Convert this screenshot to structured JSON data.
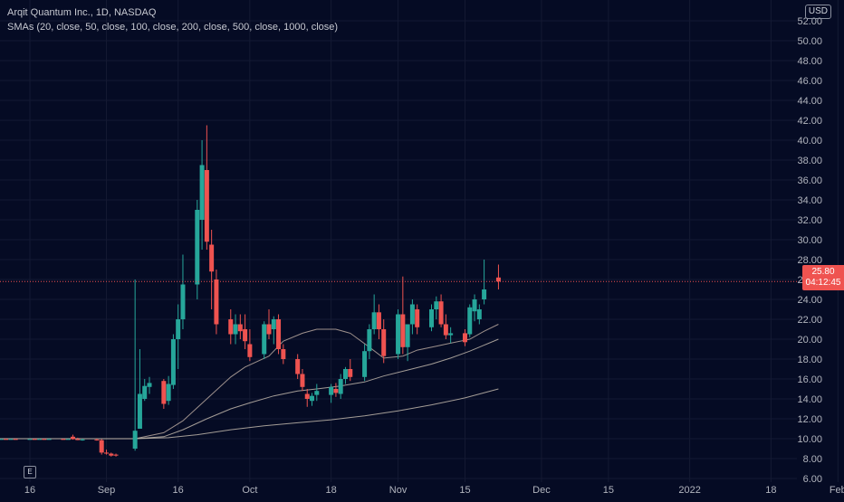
{
  "header": {
    "symbol_line": "Arqit Quantum Inc., 1D, NASDAQ",
    "indicator_line": "SMAs (20, close, 50, close, 100, close, 200, close, 500, close, 1000, close)",
    "currency": "USD"
  },
  "last_price": {
    "value": "25.80",
    "countdown": "04:12:45",
    "color": "#ef5350"
  },
  "footer": {
    "e_badge": "E"
  },
  "colors": {
    "background": "#050b24",
    "up": "#26a69a",
    "down": "#ef5350",
    "sma_short": "#b9a89f",
    "sma_long": "#bfb6aa",
    "grid": "#141a33",
    "axis_text": "#b2b5be"
  },
  "chart_data": {
    "type": "candlestick",
    "title": "Arqit Quantum Inc., 1D, NASDAQ",
    "ylim": [
      5,
      53
    ],
    "y_ticks": [
      "6.00",
      "8.00",
      "10.00",
      "12.00",
      "14.00",
      "16.00",
      "18.00",
      "20.00",
      "22.00",
      "24.00",
      "26.00",
      "28.00",
      "30.00",
      "32.00",
      "34.00",
      "36.00",
      "38.00",
      "40.00",
      "42.00",
      "44.00",
      "46.00",
      "48.00",
      "50.00",
      "52.00"
    ],
    "x_ticks": [
      {
        "label": "16",
        "date": "2021-08-16"
      },
      {
        "label": "Sep",
        "date": "2021-09-01"
      },
      {
        "label": "16",
        "date": "2021-09-16"
      },
      {
        "label": "Oct",
        "date": "2021-10-01"
      },
      {
        "label": "18",
        "date": "2021-10-18"
      },
      {
        "label": "Nov",
        "date": "2021-11-01"
      },
      {
        "label": "15",
        "date": "2021-11-15"
      },
      {
        "label": "Dec",
        "date": "2021-12-01"
      },
      {
        "label": "15",
        "date": "2021-12-15"
      },
      {
        "label": "2022",
        "date": "2022-01-01"
      },
      {
        "label": "18",
        "date": "2022-01-18"
      },
      {
        "label": "Feb",
        "date": "2022-02-01"
      }
    ],
    "candles": [
      {
        "date": "2021-08-02",
        "o": 9.95,
        "h": 10.0,
        "l": 9.9,
        "c": 9.97
      },
      {
        "date": "2021-08-03",
        "o": 9.97,
        "h": 10.0,
        "l": 9.92,
        "c": 9.95
      },
      {
        "date": "2021-08-04",
        "o": 9.95,
        "h": 10.0,
        "l": 9.92,
        "c": 9.97
      },
      {
        "date": "2021-08-05",
        "o": 9.97,
        "h": 10.0,
        "l": 9.93,
        "c": 9.96
      },
      {
        "date": "2021-08-06",
        "o": 9.96,
        "h": 10.0,
        "l": 9.93,
        "c": 9.97
      },
      {
        "date": "2021-08-09",
        "o": 9.97,
        "h": 10.0,
        "l": 9.93,
        "c": 9.95
      },
      {
        "date": "2021-08-10",
        "o": 9.95,
        "h": 10.0,
        "l": 9.93,
        "c": 9.97
      },
      {
        "date": "2021-08-11",
        "o": 9.97,
        "h": 10.0,
        "l": 9.93,
        "c": 9.96
      },
      {
        "date": "2021-08-12",
        "o": 9.96,
        "h": 10.0,
        "l": 9.93,
        "c": 9.97
      },
      {
        "date": "2021-08-13",
        "o": 9.97,
        "h": 10.0,
        "l": 9.93,
        "c": 9.95
      },
      {
        "date": "2021-08-16",
        "o": 9.95,
        "h": 10.0,
        "l": 9.93,
        "c": 9.97
      },
      {
        "date": "2021-08-17",
        "o": 9.97,
        "h": 10.0,
        "l": 9.93,
        "c": 9.96
      },
      {
        "date": "2021-08-18",
        "o": 9.96,
        "h": 10.0,
        "l": 9.93,
        "c": 9.97
      },
      {
        "date": "2021-08-19",
        "o": 9.97,
        "h": 10.0,
        "l": 9.93,
        "c": 9.95
      },
      {
        "date": "2021-08-20",
        "o": 9.95,
        "h": 10.0,
        "l": 9.93,
        "c": 9.97
      },
      {
        "date": "2021-08-23",
        "o": 9.97,
        "h": 10.0,
        "l": 9.93,
        "c": 9.96
      },
      {
        "date": "2021-08-24",
        "o": 9.96,
        "h": 10.0,
        "l": 9.93,
        "c": 9.97
      },
      {
        "date": "2021-08-25",
        "o": 10.2,
        "h": 10.4,
        "l": 9.9,
        "c": 9.95
      },
      {
        "date": "2021-08-26",
        "o": 9.95,
        "h": 10.1,
        "l": 9.85,
        "c": 9.9
      },
      {
        "date": "2021-08-27",
        "o": 9.9,
        "h": 10.0,
        "l": 9.8,
        "c": 9.92
      },
      {
        "date": "2021-08-30",
        "o": 9.92,
        "h": 10.0,
        "l": 9.8,
        "c": 9.85
      },
      {
        "date": "2021-08-31",
        "o": 9.85,
        "h": 9.95,
        "l": 8.4,
        "c": 8.6
      },
      {
        "date": "2021-09-01",
        "o": 8.6,
        "h": 8.9,
        "l": 8.4,
        "c": 8.5
      },
      {
        "date": "2021-09-02",
        "o": 8.5,
        "h": 8.6,
        "l": 8.2,
        "c": 8.3
      },
      {
        "date": "2021-09-03",
        "o": 8.4,
        "h": 8.5,
        "l": 8.2,
        "c": 8.3
      },
      {
        "date": "2021-09-07",
        "o": 9.0,
        "h": 26.0,
        "l": 8.8,
        "c": 10.8
      },
      {
        "date": "2021-09-08",
        "o": 11.0,
        "h": 19.0,
        "l": 11.0,
        "c": 14.5
      },
      {
        "date": "2021-09-09",
        "o": 14.0,
        "h": 16.0,
        "l": 13.8,
        "c": 15.3
      },
      {
        "date": "2021-09-10",
        "o": 15.2,
        "h": 16.2,
        "l": 14.5,
        "c": 15.6
      },
      {
        "date": "2021-09-13",
        "o": 15.8,
        "h": 16.0,
        "l": 13.0,
        "c": 13.5
      },
      {
        "date": "2021-09-14",
        "o": 13.8,
        "h": 16.3,
        "l": 13.4,
        "c": 15.5
      },
      {
        "date": "2021-09-15",
        "o": 15.4,
        "h": 20.5,
        "l": 15.0,
        "c": 20.0
      },
      {
        "date": "2021-09-16",
        "o": 20.0,
        "h": 23.5,
        "l": 17.0,
        "c": 22.0
      },
      {
        "date": "2021-09-17",
        "o": 22.0,
        "h": 28.5,
        "l": 21.0,
        "c": 25.5
      },
      {
        "date": "2021-09-20",
        "o": 25.5,
        "h": 34.0,
        "l": 24.0,
        "c": 33.0
      },
      {
        "date": "2021-09-21",
        "o": 32.0,
        "h": 40.0,
        "l": 29.0,
        "c": 37.5
      },
      {
        "date": "2021-09-22",
        "o": 37.0,
        "h": 41.5,
        "l": 29.0,
        "c": 29.8
      },
      {
        "date": "2021-09-23",
        "o": 29.5,
        "h": 31.0,
        "l": 23.0,
        "c": 26.8
      },
      {
        "date": "2021-09-24",
        "o": 26.0,
        "h": 27.0,
        "l": 20.5,
        "c": 21.5
      },
      {
        "date": "2021-09-27",
        "o": 22.0,
        "h": 23.0,
        "l": 19.5,
        "c": 20.5
      },
      {
        "date": "2021-09-28",
        "o": 20.5,
        "h": 22.5,
        "l": 19.5,
        "c": 21.5
      },
      {
        "date": "2021-09-29",
        "o": 21.5,
        "h": 22.5,
        "l": 20.0,
        "c": 20.8
      },
      {
        "date": "2021-09-30",
        "o": 21.0,
        "h": 22.5,
        "l": 19.0,
        "c": 19.8
      },
      {
        "date": "2021-10-01",
        "o": 19.5,
        "h": 21.0,
        "l": 17.8,
        "c": 18.2
      },
      {
        "date": "2021-10-04",
        "o": 18.5,
        "h": 21.8,
        "l": 18.0,
        "c": 21.5
      },
      {
        "date": "2021-10-05",
        "o": 21.5,
        "h": 23.0,
        "l": 20.0,
        "c": 20.5
      },
      {
        "date": "2021-10-06",
        "o": 21.0,
        "h": 22.3,
        "l": 19.5,
        "c": 22.0
      },
      {
        "date": "2021-10-07",
        "o": 22.0,
        "h": 22.5,
        "l": 18.5,
        "c": 19.0
      },
      {
        "date": "2021-10-08",
        "o": 19.0,
        "h": 19.5,
        "l": 17.5,
        "c": 18.0
      },
      {
        "date": "2021-10-11",
        "o": 18.0,
        "h": 18.5,
        "l": 16.0,
        "c": 16.5
      },
      {
        "date": "2021-10-12",
        "o": 16.5,
        "h": 17.0,
        "l": 14.8,
        "c": 15.2
      },
      {
        "date": "2021-10-13",
        "o": 14.5,
        "h": 15.0,
        "l": 13.2,
        "c": 14.0
      },
      {
        "date": "2021-10-14",
        "o": 13.8,
        "h": 14.6,
        "l": 13.3,
        "c": 14.3
      },
      {
        "date": "2021-10-15",
        "o": 14.4,
        "h": 15.5,
        "l": 13.8,
        "c": 14.8
      },
      {
        "date": "2021-10-18",
        "o": 14.4,
        "h": 15.5,
        "l": 13.6,
        "c": 15.2
      },
      {
        "date": "2021-10-19",
        "o": 15.0,
        "h": 15.6,
        "l": 14.2,
        "c": 14.6
      },
      {
        "date": "2021-10-20",
        "o": 14.5,
        "h": 16.5,
        "l": 14.0,
        "c": 16.0
      },
      {
        "date": "2021-10-21",
        "o": 16.0,
        "h": 17.2,
        "l": 15.5,
        "c": 17.0
      },
      {
        "date": "2021-10-22",
        "o": 17.0,
        "h": 18.0,
        "l": 15.8,
        "c": 16.2
      },
      {
        "date": "2021-10-25",
        "o": 16.2,
        "h": 19.5,
        "l": 15.8,
        "c": 18.8
      },
      {
        "date": "2021-10-26",
        "o": 18.8,
        "h": 21.5,
        "l": 18.0,
        "c": 21.0
      },
      {
        "date": "2021-10-27",
        "o": 21.0,
        "h": 24.5,
        "l": 20.5,
        "c": 22.7
      },
      {
        "date": "2021-10-28",
        "o": 22.7,
        "h": 23.5,
        "l": 20.0,
        "c": 21.0
      },
      {
        "date": "2021-10-29",
        "o": 21.0,
        "h": 22.0,
        "l": 17.6,
        "c": 18.3
      },
      {
        "date": "2021-11-01",
        "o": 18.5,
        "h": 23.0,
        "l": 18.0,
        "c": 22.5
      },
      {
        "date": "2021-11-02",
        "o": 22.5,
        "h": 26.3,
        "l": 18.5,
        "c": 19.2
      },
      {
        "date": "2021-11-03",
        "o": 19.2,
        "h": 21.5,
        "l": 17.8,
        "c": 21.5
      },
      {
        "date": "2021-11-04",
        "o": 21.5,
        "h": 24.0,
        "l": 20.5,
        "c": 23.5
      },
      {
        "date": "2021-11-05",
        "o": 23.0,
        "h": 23.5,
        "l": 20.5,
        "c": 21.2
      },
      {
        "date": "2021-11-08",
        "o": 21.2,
        "h": 23.5,
        "l": 20.8,
        "c": 23.0
      },
      {
        "date": "2021-11-09",
        "o": 23.0,
        "h": 24.3,
        "l": 22.0,
        "c": 23.8
      },
      {
        "date": "2021-11-10",
        "o": 23.8,
        "h": 24.5,
        "l": 21.2,
        "c": 21.5
      },
      {
        "date": "2021-11-11",
        "o": 21.5,
        "h": 22.5,
        "l": 20.0,
        "c": 20.4
      },
      {
        "date": "2021-11-12",
        "o": 20.4,
        "h": 21.2,
        "l": 19.6,
        "c": 20.6
      },
      {
        "date": "2021-11-15",
        "o": 20.6,
        "h": 21.0,
        "l": 19.3,
        "c": 19.7
      },
      {
        "date": "2021-11-16",
        "o": 20.5,
        "h": 23.5,
        "l": 20.2,
        "c": 23.2
      },
      {
        "date": "2021-11-17",
        "o": 22.8,
        "h": 24.5,
        "l": 21.8,
        "c": 24.0
      },
      {
        "date": "2021-11-18",
        "o": 22.0,
        "h": 23.5,
        "l": 21.5,
        "c": 23.0
      },
      {
        "date": "2021-11-19",
        "o": 24.0,
        "h": 28.0,
        "l": 23.5,
        "c": 25.0
      },
      {
        "date": "2021-11-22",
        "o": 26.2,
        "h": 27.5,
        "l": 25.0,
        "c": 25.8
      }
    ],
    "series": [
      {
        "kind": "sma",
        "color": "#b9a89f",
        "points": [
          [
            "2021-09-07",
            10.0
          ],
          [
            "2021-09-13",
            10.6
          ],
          [
            "2021-09-17",
            11.8
          ],
          [
            "2021-09-22",
            14.0
          ],
          [
            "2021-09-27",
            16.2
          ],
          [
            "2021-09-30",
            17.2
          ],
          [
            "2021-10-05",
            18.3
          ],
          [
            "2021-10-08",
            19.8
          ],
          [
            "2021-10-12",
            20.6
          ],
          [
            "2021-10-15",
            21.0
          ],
          [
            "2021-10-19",
            21.0
          ],
          [
            "2021-10-22",
            20.6
          ],
          [
            "2021-10-26",
            19.2
          ],
          [
            "2021-10-29",
            18.1
          ],
          [
            "2021-11-02",
            18.3
          ],
          [
            "2021-11-05",
            18.9
          ],
          [
            "2021-11-09",
            19.3
          ],
          [
            "2021-11-12",
            19.6
          ],
          [
            "2021-11-16",
            20.0
          ],
          [
            "2021-11-19",
            20.8
          ],
          [
            "2021-11-22",
            21.5
          ]
        ]
      },
      {
        "kind": "sma",
        "color": "#bfb6aa",
        "points": [
          [
            "2021-09-07",
            10.0
          ],
          [
            "2021-09-13",
            10.2
          ],
          [
            "2021-09-17",
            10.9
          ],
          [
            "2021-09-22",
            12.0
          ],
          [
            "2021-09-27",
            13.0
          ],
          [
            "2021-10-01",
            13.6
          ],
          [
            "2021-10-06",
            14.3
          ],
          [
            "2021-10-11",
            14.8
          ],
          [
            "2021-10-15",
            15.0
          ],
          [
            "2021-10-20",
            15.3
          ],
          [
            "2021-10-25",
            15.7
          ],
          [
            "2021-10-29",
            16.3
          ],
          [
            "2021-11-03",
            16.9
          ],
          [
            "2021-11-08",
            17.5
          ],
          [
            "2021-11-12",
            18.1
          ],
          [
            "2021-11-16",
            18.8
          ],
          [
            "2021-11-19",
            19.4
          ],
          [
            "2021-11-22",
            20.0
          ]
        ]
      },
      {
        "kind": "sma",
        "color": "#bfb6aa",
        "points": [
          [
            "2021-09-07",
            10.0
          ],
          [
            "2021-09-14",
            10.1
          ],
          [
            "2021-09-20",
            10.4
          ],
          [
            "2021-09-27",
            10.9
          ],
          [
            "2021-10-04",
            11.3
          ],
          [
            "2021-10-11",
            11.6
          ],
          [
            "2021-10-18",
            11.9
          ],
          [
            "2021-10-25",
            12.3
          ],
          [
            "2021-11-01",
            12.8
          ],
          [
            "2021-11-08",
            13.4
          ],
          [
            "2021-11-15",
            14.1
          ],
          [
            "2021-11-22",
            15.0
          ]
        ]
      }
    ]
  }
}
